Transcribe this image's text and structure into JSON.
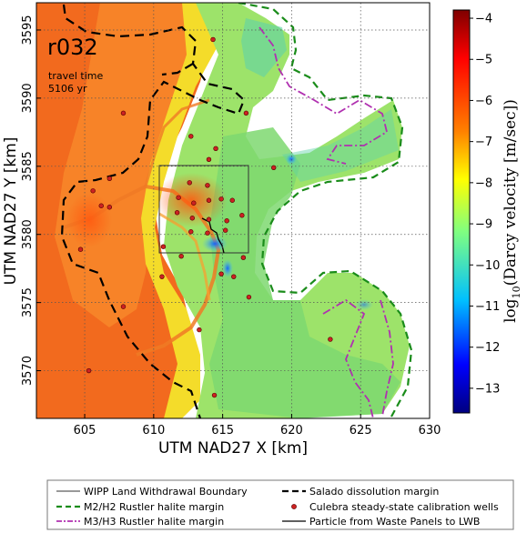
{
  "map": {
    "run_label": "r032",
    "travel_time_label": "travel time",
    "travel_time_value": "5106 yr",
    "xlabel": "UTM NAD27 X [km]",
    "ylabel": "UTM NAD27 Y [km]",
    "x_ticks": [
      "605",
      "610",
      "615",
      "620",
      "625",
      "630"
    ],
    "y_ticks": [
      "3595",
      "3590",
      "3585",
      "3580",
      "3575",
      "3570"
    ],
    "xlim": [
      601.5,
      630
    ],
    "ylim": [
      3566.5,
      3597
    ]
  },
  "colorbar": {
    "title_prefix": "log",
    "title_sub": "10",
    "title_suffix": "(Darcy velocity [m/sec])",
    "ticks": [
      "-4",
      "-5",
      "-6",
      "-7",
      "-8",
      "-9",
      "-10",
      "-11",
      "-12",
      "-13"
    ],
    "range": [
      -13.6,
      -3.8
    ],
    "colors": [
      "#7f0000",
      "#ff0000",
      "#ff8000",
      "#ffff00",
      "#80ff80",
      "#00c0ff",
      "#0000ff",
      "#00007f"
    ]
  },
  "legend": {
    "items": [
      {
        "label": "WIPP Land Withdrawal Boundary",
        "style": "thin-solid",
        "color": "#222222"
      },
      {
        "label": "Salado dissolution margin",
        "style": "thick-dash",
        "color": "#000000"
      },
      {
        "label": "M2/H2 Rustler halite margin",
        "style": "dash",
        "color": "#1a8c1a"
      },
      {
        "label": "Culebra steady-state calibration wells",
        "style": "marker",
        "color": "#cc2222"
      },
      {
        "label": "M3/H3 Rustler halite margin",
        "style": "dash-dot",
        "color": "#b030b0"
      },
      {
        "label": "Particle from Waste Panels to LWB",
        "style": "solid",
        "color": "#000000"
      }
    ]
  },
  "wells": [
    [
      614.3,
      3594.3
    ],
    [
      616.7,
      3588.9
    ],
    [
      607.8,
      3588.9
    ],
    [
      612.7,
      3587.2
    ],
    [
      614.5,
      3586.3
    ],
    [
      614.0,
      3585.5
    ],
    [
      605.6,
      3583.2
    ],
    [
      606.8,
      3584.1
    ],
    [
      612.6,
      3583.8
    ],
    [
      613.9,
      3583.6
    ],
    [
      611.8,
      3582.7
    ],
    [
      612.9,
      3582.3
    ],
    [
      614.0,
      3582.5
    ],
    [
      614.9,
      3582.6
    ],
    [
      615.7,
      3582.5
    ],
    [
      611.7,
      3581.6
    ],
    [
      612.8,
      3581.2
    ],
    [
      614.0,
      3581.1
    ],
    [
      615.3,
      3581.0
    ],
    [
      616.4,
      3581.4
    ],
    [
      606.2,
      3582.1
    ],
    [
      606.8,
      3582.0
    ],
    [
      612.7,
      3580.2
    ],
    [
      613.9,
      3580.1
    ],
    [
      615.2,
      3580.3
    ],
    [
      610.7,
      3579.1
    ],
    [
      612.0,
      3578.4
    ],
    [
      616.5,
      3578.3
    ],
    [
      604.7,
      3578.9
    ],
    [
      610.6,
      3576.9
    ],
    [
      614.9,
      3577.1
    ],
    [
      615.8,
      3576.9
    ],
    [
      616.9,
      3575.4
    ],
    [
      607.8,
      3574.7
    ],
    [
      613.3,
      3573.0
    ],
    [
      622.8,
      3572.3
    ],
    [
      614.4,
      3568.2
    ],
    [
      605.3,
      3570.0
    ],
    [
      618.7,
      3584.9
    ]
  ]
}
